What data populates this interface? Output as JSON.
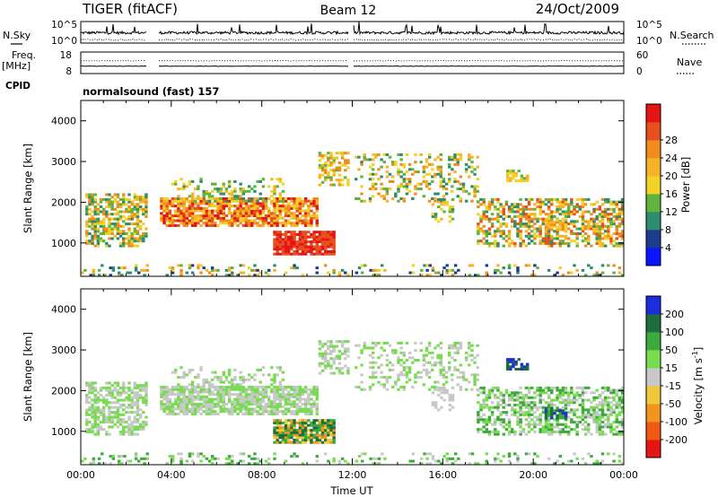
{
  "header": {
    "title": "TIGER (fitACF)",
    "beam": "Beam 12",
    "date": "24/Oct/2009"
  },
  "left_labels": {
    "nsky": "N.Sky",
    "freq": "Freq.",
    "freq_unit": "[MHz]",
    "cpid": "CPID"
  },
  "right_labels": {
    "nsearch": "N.Search",
    "nave": "Nave"
  },
  "cpid_text": "normalsound (fast) 157",
  "chart_data": [
    {
      "type": "line",
      "panel": "noise",
      "y_ticks_left": [
        "10^5",
        "10^0"
      ],
      "y_ticks_right": [
        "10^5",
        "10^0"
      ],
      "series": [
        {
          "name": "N.Sky",
          "style": "solid"
        },
        {
          "name": "N.Search",
          "style": "dotted"
        }
      ],
      "gaps": [
        [
          2.9,
          3.45
        ],
        [
          11.85,
          12.05
        ]
      ]
    },
    {
      "type": "line",
      "panel": "frequency/nave",
      "y_ticks_left": [
        "18",
        "8"
      ],
      "y_ticks_right": [
        "60",
        "0"
      ],
      "series": [
        {
          "name": "Freq.",
          "style": "solid"
        },
        {
          "name": "Nave",
          "style": "dotted"
        }
      ]
    },
    {
      "type": "heatmap",
      "panel": "power",
      "xlabel": "",
      "ylabel": "Slant Range [km]",
      "xlim": [
        0,
        24
      ],
      "ylim": [
        180,
        4500
      ],
      "y_ticks": [
        "1000",
        "2000",
        "3000",
        "4000"
      ],
      "x_tick_hours": [
        0,
        4,
        8,
        12,
        16,
        20,
        24
      ],
      "colorbar": {
        "label": "Power [dB]",
        "ticks": [
          "4",
          "8",
          "12",
          "16",
          "20",
          "24",
          "28"
        ],
        "colors": [
          "#0a14ff",
          "#1e3c8c",
          "#2d8c6e",
          "#5fb43c",
          "#f0d228",
          "#f5b428",
          "#f08c1e",
          "#e6501e",
          "#e61414"
        ]
      }
    },
    {
      "type": "heatmap",
      "panel": "velocity",
      "xlabel": "Time UT",
      "ylabel": "Slant Range [km]",
      "xlim": [
        0,
        24
      ],
      "ylim": [
        180,
        4500
      ],
      "y_ticks": [
        "1000",
        "2000",
        "3000",
        "4000"
      ],
      "x_ticks": [
        "00:00",
        "04:00",
        "08:00",
        "12:00",
        "16:00",
        "20:00",
        "00:00"
      ],
      "colorbar": {
        "label": "Velocity [m s",
        "label_sup": "-1",
        "label_end": "]",
        "ticks": [
          "200",
          "100",
          "50",
          "15",
          "-15",
          "-50",
          "-100",
          "-200"
        ],
        "colors": [
          "#1e2ddc",
          "#1e6e3c",
          "#3caa3c",
          "#78dc50",
          "#c8c8c8",
          "#f0c83c",
          "#f0961e",
          "#f05a14",
          "#e61414"
        ]
      }
    }
  ]
}
